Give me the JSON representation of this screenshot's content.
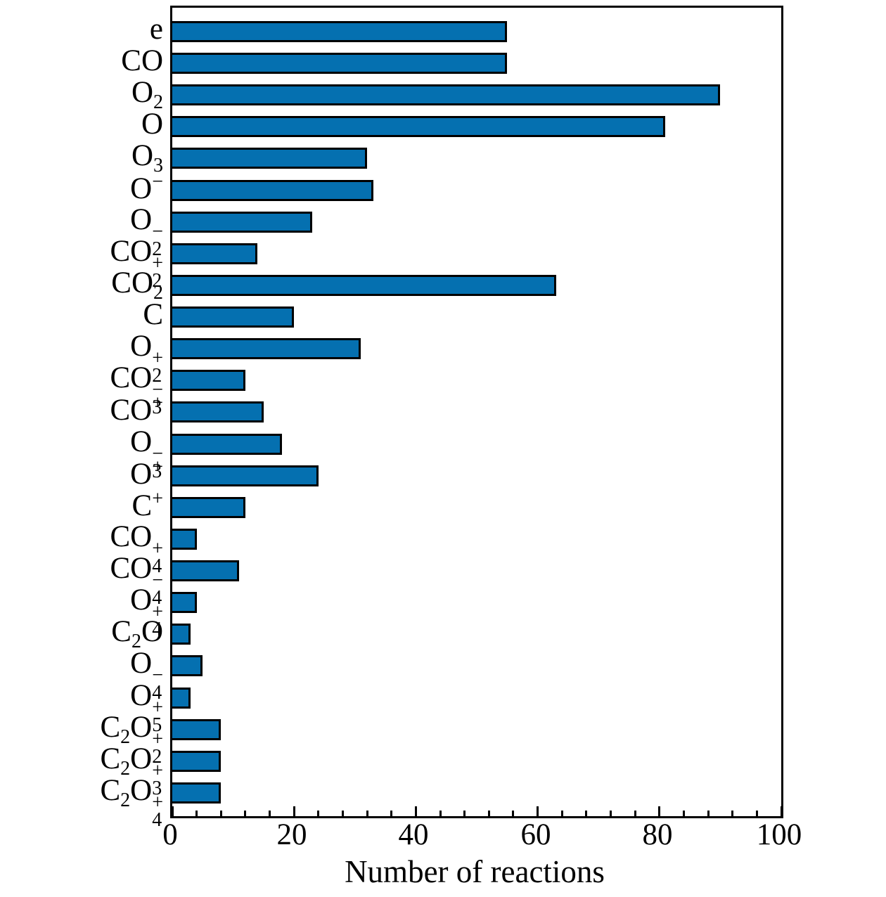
{
  "figure": {
    "background": "#ffffff"
  },
  "chart_data": {
    "type": "bar",
    "orientation": "horizontal",
    "title": "",
    "xlabel": "Number of reactions",
    "ylabel": "",
    "categories": [
      "e",
      "CO",
      "O_2",
      "O",
      "O_3",
      "O^-",
      "O_2^-",
      "CO_2^+",
      "CO_2",
      "C",
      "O_2^+",
      "CO_3^-",
      "CO^+",
      "O_3^-",
      "O^+",
      "C^+",
      "CO_4^+",
      "CO_4^-",
      "O_4^+",
      "C_2O",
      "O_4^-",
      "O_5^+",
      "C_2O_2^+",
      "C_2O_3^+",
      "C_2O_4^+"
    ],
    "values": [
      55,
      55,
      90,
      81,
      32,
      33,
      23,
      14,
      63,
      20,
      31,
      12,
      15,
      18,
      24,
      12,
      4,
      11,
      4,
      3,
      5,
      3,
      8,
      8,
      8
    ],
    "xlim": [
      0,
      100
    ],
    "xticks": [
      0,
      20,
      40,
      60,
      80,
      100
    ],
    "minor_tick_step": 4,
    "grid": false,
    "legend": null,
    "bar_color": "#0570b0",
    "bar_edge_color": "#000000",
    "axis_color": "#000000",
    "tick_direction": "in"
  }
}
